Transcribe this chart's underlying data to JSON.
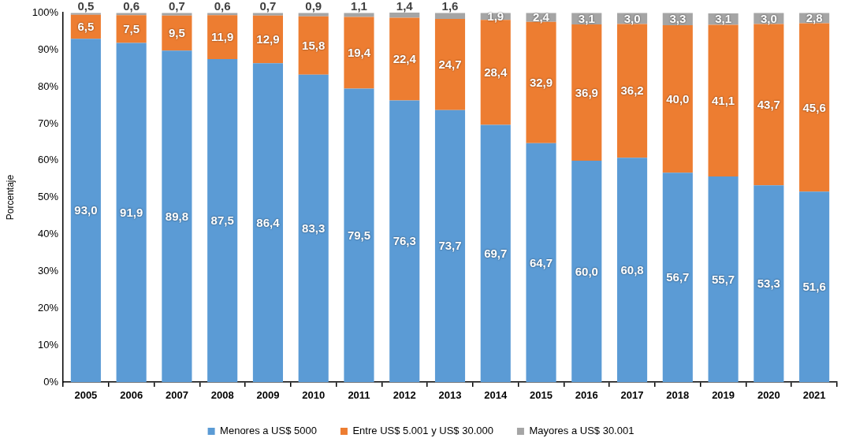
{
  "chart_data": {
    "type": "bar",
    "stacked": true,
    "ylabel": "Porcentaje",
    "categories": [
      "2005",
      "2006",
      "2007",
      "2008",
      "2009",
      "2010",
      "2011",
      "2012",
      "2013",
      "2014",
      "2015",
      "2016",
      "2017",
      "2018",
      "2019",
      "2020",
      "2021"
    ],
    "series": [
      {
        "name": "Menores a US$ 5000",
        "color": "#5b9bd5",
        "values": [
          93.0,
          91.9,
          89.8,
          87.5,
          86.4,
          83.3,
          79.5,
          76.3,
          73.7,
          69.7,
          64.7,
          60.0,
          60.8,
          56.7,
          55.7,
          53.3,
          51.6
        ],
        "value_labels": [
          "93,0",
          "91,9",
          "89,8",
          "87,5",
          "86,4",
          "83,3",
          "79,5",
          "76,3",
          "73,7",
          "69,7",
          "64,7",
          "60,0",
          "60,8",
          "56,7",
          "55,7",
          "53,3",
          "51,6"
        ]
      },
      {
        "name": "Entre US$ 5.001 y US$ 30.000",
        "color": "#ed7d31",
        "values": [
          6.5,
          7.5,
          9.5,
          11.9,
          12.9,
          15.8,
          19.4,
          22.4,
          24.7,
          28.4,
          32.9,
          36.9,
          36.2,
          40.0,
          41.1,
          43.7,
          45.6
        ],
        "value_labels": [
          "6,5",
          "7,5",
          "9,5",
          "11,9",
          "12,9",
          "15,8",
          "19,4",
          "22,4",
          "24,7",
          "28,4",
          "32,9",
          "36,9",
          "36,2",
          "40,0",
          "41,1",
          "43,7",
          "45,6"
        ]
      },
      {
        "name": "Mayores a US$ 30.001",
        "color": "#a5a5a5",
        "values": [
          0.5,
          0.6,
          0.7,
          0.6,
          0.7,
          0.9,
          1.1,
          1.4,
          1.6,
          1.9,
          2.4,
          3.1,
          3.0,
          3.3,
          3.1,
          3.0,
          2.8
        ],
        "value_labels": [
          "0,5",
          "0,6",
          "0,7",
          "0,6",
          "0,7",
          "0,9",
          "1,1",
          "1,4",
          "1,6",
          "1,9",
          "2,4",
          "3,1",
          "3,0",
          "3,3",
          "3,1",
          "3,0",
          "2,8"
        ]
      }
    ],
    "ylim": [
      0,
      100.1
    ],
    "yticks": [
      {
        "value": 0,
        "label": "0%"
      },
      {
        "value": 10,
        "label": "10%"
      },
      {
        "value": 20,
        "label": "20%"
      },
      {
        "value": 30,
        "label": "30%"
      },
      {
        "value": 40,
        "label": "40%"
      },
      {
        "value": 50,
        "label": "50%"
      },
      {
        "value": 60,
        "label": "60%"
      },
      {
        "value": 70,
        "label": "70%"
      },
      {
        "value": 80,
        "label": "80%"
      },
      {
        "value": 90,
        "label": "90%"
      },
      {
        "value": 100,
        "label": "100%"
      }
    ],
    "legend": "bottom"
  }
}
